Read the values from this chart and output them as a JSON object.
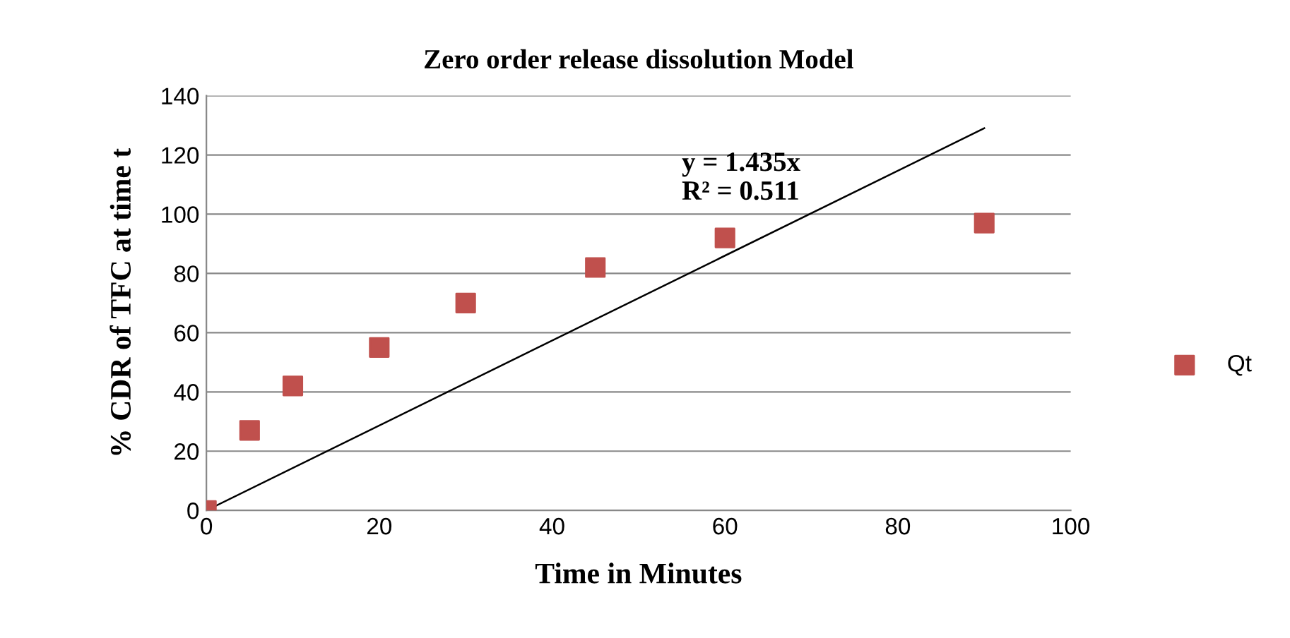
{
  "chart_data": {
    "type": "scatter",
    "title": "Zero order release dissolution Model",
    "xlabel": "Time in Minutes",
    "ylabel": "% CDR of TFC at time t",
    "x": [
      0,
      5,
      10,
      20,
      30,
      45,
      60,
      90
    ],
    "series": [
      {
        "name": "Qt",
        "color": "#c0504d",
        "marker": "square",
        "values": [
          0,
          27,
          42,
          55,
          70,
          82,
          92,
          97
        ]
      },
      {
        "type": "line",
        "color": "#000000",
        "marker": "none",
        "x": [
          0,
          90
        ],
        "values": [
          0,
          129
        ]
      }
    ],
    "annotations": [
      "y = 1.435x\nR² = 0.511"
    ],
    "xlim": [
      0,
      100
    ],
    "xticks": [
      0,
      20,
      40,
      60,
      80,
      100
    ],
    "ylim": [
      0,
      140
    ],
    "yticks": [
      0,
      20,
      40,
      60,
      80,
      100,
      120,
      140
    ],
    "grid": "y",
    "legend": "right"
  }
}
